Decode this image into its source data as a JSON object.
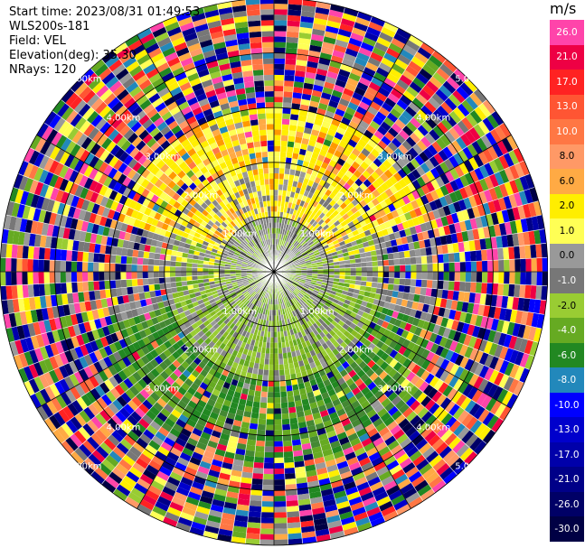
{
  "info": {
    "start_time": "Start time: 2023/08/31 01:49:53",
    "site": "WLS200s-181",
    "field": "Field: VEL",
    "elevation": "Elevation(deg): 35.30",
    "nrays": "NRays: 120"
  },
  "colorbar": {
    "unit": "m/s",
    "levels": [
      {
        "label": "26.0",
        "color": "#ff44aa"
      },
      {
        "label": "21.0",
        "color": "#ee0044"
      },
      {
        "label": "17.0",
        "color": "#ff2222"
      },
      {
        "label": "13.0",
        "color": "#ff5533"
      },
      {
        "label": "10.0",
        "color": "#ff7744"
      },
      {
        "label": "8.0",
        "color": "#ff9966"
      },
      {
        "label": "6.0",
        "color": "#ffaa44"
      },
      {
        "label": "2.0",
        "color": "#ffee00"
      },
      {
        "label": "1.0",
        "color": "#ffff55"
      },
      {
        "label": "0.0",
        "color": "#999999"
      },
      {
        "label": "-1.0",
        "color": "#777777"
      },
      {
        "label": "-2.0",
        "color": "#99cc33"
      },
      {
        "label": "-4.0",
        "color": "#66aa22"
      },
      {
        "label": "-6.0",
        "color": "#228822"
      },
      {
        "label": "-8.0",
        "color": "#2288bb"
      },
      {
        "label": "-10.0",
        "color": "#0000ff"
      },
      {
        "label": "-13.0",
        "color": "#0000cc"
      },
      {
        "label": "-17.0",
        "color": "#0000aa"
      },
      {
        "label": "-21.0",
        "color": "#000088"
      },
      {
        "label": "-26.0",
        "color": "#000066"
      },
      {
        "label": "-30.0",
        "color": "#000044"
      }
    ]
  },
  "chart_data": {
    "type": "heatmap",
    "field": "VEL",
    "nrays": 120,
    "range_rings_km": [
      "1.00km",
      "2.00km",
      "3.00km",
      "4.00km",
      "5.00km"
    ],
    "max_range_km": 5.0,
    "description": "Polar PPI radial velocity scan; inner (<1 km) mostly grey/green, 1-2 km yellow to the north and green to the south, beyond ~3 km noisy multicolor clutter"
  }
}
